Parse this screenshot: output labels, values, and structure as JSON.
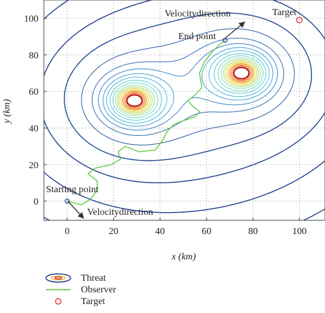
{
  "chart_data": {
    "type": "contour",
    "xlabel": "x (km)",
    "ylabel": "y (km)",
    "xlim": [
      -10,
      111
    ],
    "ylim": [
      -10.5,
      110
    ],
    "xticks": [
      0,
      20,
      40,
      60,
      80,
      100
    ],
    "yticks": [
      0,
      20,
      40,
      60,
      80,
      100
    ],
    "grid": true,
    "threats": {
      "name": "Threat",
      "x": [
        29,
        75
      ],
      "y": [
        55,
        70
      ]
    },
    "observer": {
      "name": "Observer",
      "color": "#5cc83a",
      "x": [
        0,
        6,
        10,
        13,
        13,
        9,
        12,
        19,
        23,
        22,
        25,
        31,
        38,
        41,
        43,
        46,
        50,
        55,
        57,
        54,
        52,
        55,
        58,
        57,
        59,
        62,
        65,
        68
      ],
      "y": [
        0,
        -2,
        1,
        6,
        11,
        15,
        18,
        20,
        23,
        27,
        30,
        27,
        28,
        33,
        38,
        42,
        44,
        46,
        49,
        52,
        55,
        58,
        62,
        70,
        76,
        81,
        85,
        88
      ]
    },
    "target": {
      "name": "Target",
      "color": "#e02020",
      "x": 100,
      "y": 99
    },
    "annotations": [
      "Velocitydirection",
      "End point",
      "Target",
      "Starting point",
      "Velocitydirection"
    ]
  }
}
